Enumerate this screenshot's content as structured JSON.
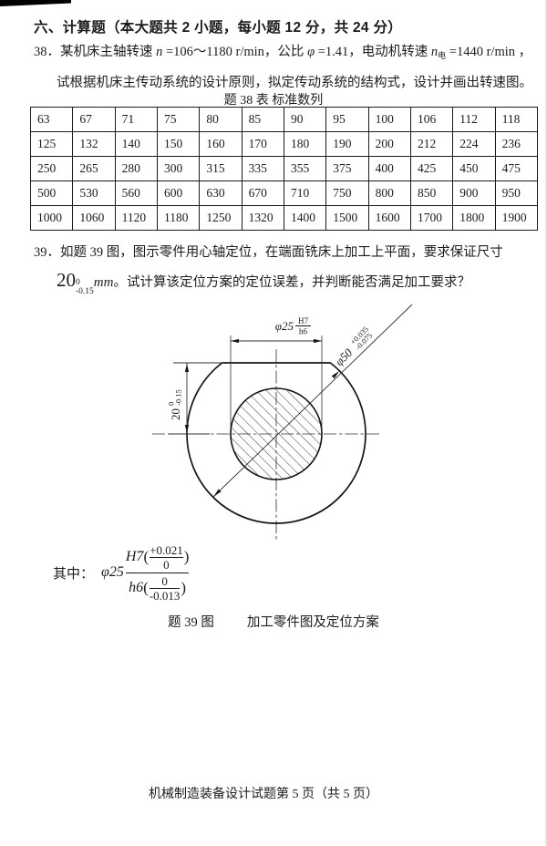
{
  "header": {
    "text": "六、计算题（本大题共 2 小题，每小题 12 分，共 24 分）"
  },
  "q38": {
    "number": "38．",
    "t1": "某机床主轴转速 ",
    "v1": "n",
    "t2": " =106～1180 r/min，公比 ",
    "v2": "φ",
    "t3": " =1.41，电动机转速 ",
    "v3": "n",
    "sub3": "电",
    "t4": " =1440 r/min ，",
    "line2": "试根据机床主传动系统的设计原则，拟定传动系统的结构式，设计并画出转速图。"
  },
  "table38": {
    "title": "题 38 表  标准数列",
    "rows": [
      [
        "63",
        "67",
        "71",
        "75",
        "80",
        "85",
        "90",
        "95",
        "100",
        "106",
        "112",
        "118"
      ],
      [
        "125",
        "132",
        "140",
        "150",
        "160",
        "170",
        "180",
        "190",
        "200",
        "212",
        "224",
        "236"
      ],
      [
        "250",
        "265",
        "280",
        "300",
        "315",
        "335",
        "355",
        "375",
        "400",
        "425",
        "450",
        "475"
      ],
      [
        "500",
        "530",
        "560",
        "600",
        "630",
        "670",
        "710",
        "750",
        "800",
        "850",
        "900",
        "950"
      ],
      [
        "1000",
        "1060",
        "1120",
        "1180",
        "1250",
        "1320",
        "1400",
        "1500",
        "1600",
        "1700",
        "1800",
        "1900"
      ]
    ]
  },
  "q39": {
    "number": "39．",
    "line1": "如题 39 图，图示零件用心轴定位，在端面铣床上加工上平面，要求保证尺寸",
    "dim_base": "20",
    "dim_sup": "0",
    "dim_sub": "-0.15",
    "dim_unit": "mm",
    "line2_rest": "。试计算该定位方案的定位误差，并判断能否满足加工要求？"
  },
  "drawing": {
    "dia25_prefix": "φ25",
    "dia25_top": "H7",
    "dia25_bottom": "h6",
    "dia50_prefix": "φ50",
    "dia50_sup": "+0.035",
    "dia50_sub": "-0.075",
    "dim20_base": "20",
    "dim20_sup": "0",
    "dim20_sub": "-0.15"
  },
  "formula": {
    "lead": "其中：",
    "phi": "φ25",
    "num_name": "H7",
    "num_open": "(",
    "num_top": "+0.021",
    "num_bottom": "0",
    "num_close": ")",
    "den_name": "h6",
    "den_open": "(",
    "den_top": "0",
    "den_bottom": "-0.013",
    "den_close": ")"
  },
  "caption": {
    "fig_label": "题 39 图",
    "fig_title": "加工零件图及定位方案"
  },
  "footer": {
    "text": "机械制造装备设计试题第 5 页（共 5 页）"
  }
}
